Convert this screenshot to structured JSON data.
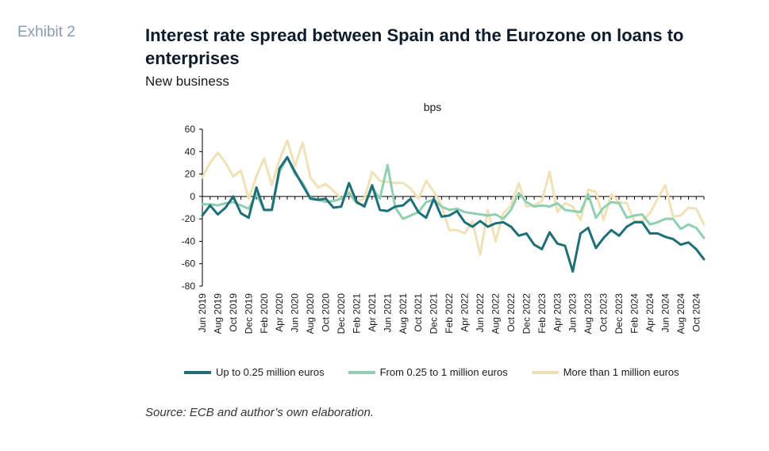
{
  "exhibit_label": "Exhibit 2",
  "title": "Interest rate spread between Spain and the Eurozone on loans to enterprises",
  "subtitle": "New business",
  "source": "Source: ECB and author’s own elaboration.",
  "chart_data": {
    "type": "line",
    "ylabel": "bps",
    "ylim": [
      -80,
      60
    ],
    "yticks": [
      60,
      40,
      20,
      0,
      -20,
      -40,
      -60,
      -80
    ],
    "x_start": "Jun 2019",
    "x_tick_labels": [
      "Jun 2019",
      "Aug 2019",
      "Oct 2019",
      "Dec 2019",
      "Feb 2020",
      "Apr 2020",
      "Jun 2020",
      "Aug 2020",
      "Oct 2020",
      "Dec 2020",
      "Feb 2021",
      "Apr 2021",
      "Jun 2021",
      "Aug 2021",
      "Oct 2021",
      "Dec 2021",
      "Feb 2022",
      "Apr 2022",
      "Jun 2022",
      "Aug 2022",
      "Oct 2022",
      "Dec 2022",
      "Feb 2023",
      "Apr 2023",
      "Jun 2023",
      "Aug 2023",
      "Oct 2023",
      "Dec 2023",
      "Feb 2024",
      "Apr 2024",
      "Jun 2024",
      "Aug 2024",
      "Oct 2024"
    ],
    "legend_position": "bottom",
    "series": [
      {
        "name": "Up to 0.25 million euros",
        "color": "#1f6f78",
        "values": [
          -17,
          -8,
          -16,
          -10,
          0,
          -15,
          -19,
          8,
          -12,
          -12,
          25,
          35,
          22,
          10,
          -2,
          -3,
          -2,
          -10,
          -9,
          12,
          -5,
          -9,
          10,
          -12,
          -13,
          -9,
          -8,
          -2,
          -14,
          -19,
          -2,
          -18,
          -17,
          -13,
          -23,
          -27,
          -22,
          -27,
          -24,
          -23,
          -27,
          -35,
          -33,
          -43,
          -47,
          -32,
          -42,
          -44,
          -67,
          -33,
          -28,
          -46,
          -37,
          -30,
          -35,
          -27,
          -23,
          -23,
          -33,
          -33,
          -36,
          -38,
          -43,
          -41,
          -47,
          -56
        ]
      },
      {
        "name": "From 0.25 to 1 million euros",
        "color": "#8fd0b1",
        "values": [
          -7,
          -7,
          -8,
          -6,
          -5,
          -8,
          -11,
          2,
          -12,
          -12,
          22,
          35,
          20,
          12,
          -1,
          -3,
          -5,
          -4,
          -2,
          3,
          -6,
          -8,
          8,
          -2,
          28,
          -10,
          -20,
          -17,
          -14,
          -5,
          -3,
          -9,
          -12,
          -11,
          -14,
          -15,
          -16,
          -17,
          -16,
          -20,
          -12,
          3,
          -5,
          -9,
          -8,
          -9,
          -6,
          -12,
          -13,
          -14,
          2,
          -19,
          -10,
          -5,
          -6,
          -19,
          -17,
          -16,
          -25,
          -23,
          -20,
          -20,
          -29,
          -25,
          -28,
          -37
        ]
      },
      {
        "name": "More than 1 million euros",
        "color": "#f0e1b6",
        "values": [
          17,
          30,
          39,
          30,
          18,
          23,
          -2,
          18,
          34,
          10,
          33,
          50,
          27,
          48,
          17,
          8,
          11,
          5,
          -2,
          5,
          -4,
          -2,
          22,
          14,
          13,
          12,
          12,
          7,
          -2,
          14,
          4,
          -8,
          -30,
          -30,
          -33,
          -22,
          -52,
          -12,
          -40,
          -15,
          -8,
          12,
          -9,
          -8,
          -4,
          22,
          -14,
          -6,
          -9,
          -21,
          6,
          4,
          -21,
          2,
          -5,
          -6,
          -22,
          -22,
          -15,
          -2,
          10,
          -18,
          -17,
          -10,
          -11,
          -25
        ]
      }
    ]
  }
}
